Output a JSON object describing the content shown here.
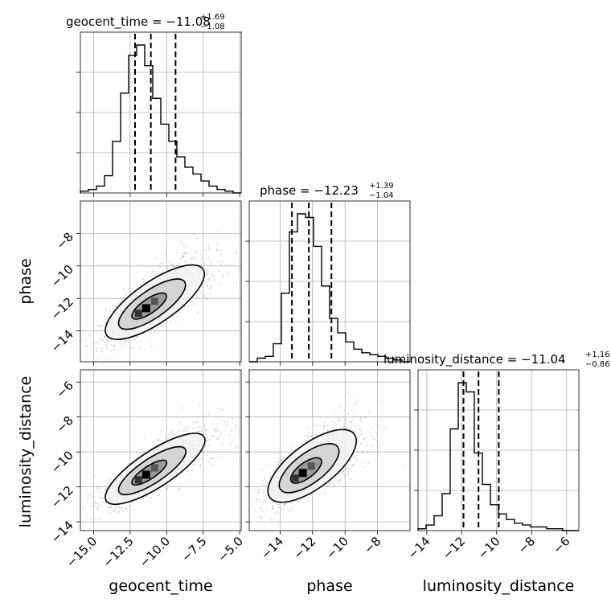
{
  "chart_data": {
    "type": "corner",
    "parameters": [
      {
        "name": "geocent_time",
        "label": "geocent_time",
        "title": "geocent_time = −11.08",
        "median": -11.08,
        "upper": 1.69,
        "lower": 1.08,
        "quantiles": [
          -12.16,
          -11.08,
          -9.39
        ],
        "range": [
          -15.9,
          -4.9
        ],
        "ticks": [
          -15.0,
          -12.5,
          -10.0,
          -7.5,
          -5.0
        ],
        "tick_labels": [
          "−15.0",
          "−12.5",
          "−10.0",
          "−7.5",
          "−5.0"
        ],
        "hist_edges_start": -15.9,
        "hist_bin": 0.55,
        "hist_counts": [
          1,
          2,
          4,
          10,
          30,
          58,
          80,
          86,
          74,
          55,
          40,
          30,
          21,
          15,
          11,
          7,
          4,
          2,
          1,
          0
        ]
      },
      {
        "name": "phase",
        "label": "phase",
        "title": "phase = −12.23",
        "median": -12.23,
        "upper": 1.39,
        "lower": 1.04,
        "quantiles": [
          -13.27,
          -12.23,
          -10.84
        ],
        "range": [
          -15.9,
          -6.0
        ],
        "ticks": [
          -14,
          -12,
          -10,
          -8
        ],
        "tick_labels": [
          "−14",
          "−12",
          "−10",
          "−8"
        ],
        "hist_edges_start": -15.9,
        "hist_bin": 0.495,
        "hist_counts": [
          0,
          2,
          3,
          10,
          38,
          72,
          82,
          80,
          64,
          42,
          24,
          16,
          11,
          7,
          5,
          4,
          3,
          2,
          1,
          0
        ]
      },
      {
        "name": "luminosity_distance",
        "label": "luminosity_distance",
        "title": "luminosity_distance = −11.04",
        "median": -11.04,
        "upper": 1.16,
        "lower": 0.86,
        "quantiles": [
          -11.9,
          -11.04,
          -9.88
        ],
        "range": [
          -14.5,
          -5.3
        ],
        "ticks": [
          -14,
          -12,
          -10,
          -8,
          -6
        ],
        "tick_labels": [
          "−14",
          "−12",
          "−10",
          "−8",
          "−6"
        ],
        "hist_edges_start": -14.5,
        "hist_bin": 0.46,
        "hist_counts": [
          1,
          3,
          8,
          20,
          55,
          80,
          75,
          42,
          25,
          14,
          9,
          6,
          4,
          3,
          2,
          2,
          1,
          1,
          0,
          0
        ]
      }
    ],
    "pairs": [
      {
        "x": "geocent_time",
        "y": "phase",
        "center": [
          -11.4,
          -12.6
        ],
        "slope": 0.62,
        "spread_major": 1.6,
        "spread_minor": 0.55
      },
      {
        "x": "geocent_time",
        "y": "luminosity_distance",
        "center": [
          -11.4,
          -11.3
        ],
        "slope": 0.55,
        "spread_major": 1.6,
        "spread_minor": 0.45
      },
      {
        "x": "phase",
        "y": "luminosity_distance",
        "center": [
          -12.6,
          -11.2
        ],
        "slope": 0.7,
        "spread_major": 1.3,
        "spread_minor": 0.55
      }
    ],
    "grid": true,
    "sample_color": "#7f7f7f"
  },
  "labels": {
    "titles": [
      {
        "main": "geocent_time = −11.08",
        "sup": "+1.69",
        "sub": "−1.08"
      },
      {
        "main": "phase = −12.23",
        "sup": "+1.39",
        "sub": "−1.04"
      },
      {
        "main": "luminosity_distance = −11.04",
        "sup": "+1.16",
        "sub": "−0.86"
      }
    ],
    "x_axis": [
      "geocent_time",
      "phase",
      "luminosity_distance"
    ],
    "y_axis": [
      "phase",
      "luminosity_distance"
    ]
  }
}
